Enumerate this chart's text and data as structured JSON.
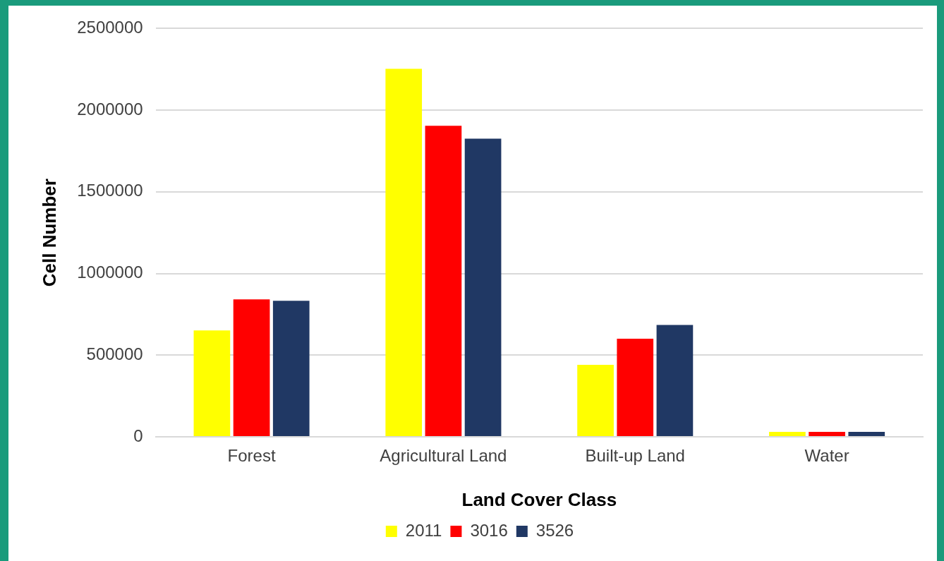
{
  "chart_data": {
    "type": "bar",
    "xlabel": "Land Cover Class",
    "ylabel": "Cell Number",
    "categories": [
      "Forest",
      "Agricultural Land",
      "Built-up Land",
      "Water"
    ],
    "series": [
      {
        "name": "2011",
        "color": "#ffff00",
        "values": [
          651000,
          2253000,
          441000,
          30000
        ]
      },
      {
        "name": "3016",
        "color": "#ff0000",
        "values": [
          842000,
          1904000,
          601000,
          30000
        ]
      },
      {
        "name": "3526",
        "color": "#203864",
        "values": [
          833000,
          1826000,
          685000,
          30000
        ]
      }
    ],
    "ylim": [
      0,
      2500000
    ],
    "yticks": [
      0,
      500000,
      1000000,
      1500000,
      2000000,
      2500000
    ],
    "grid": "y",
    "legend": "bottom"
  }
}
